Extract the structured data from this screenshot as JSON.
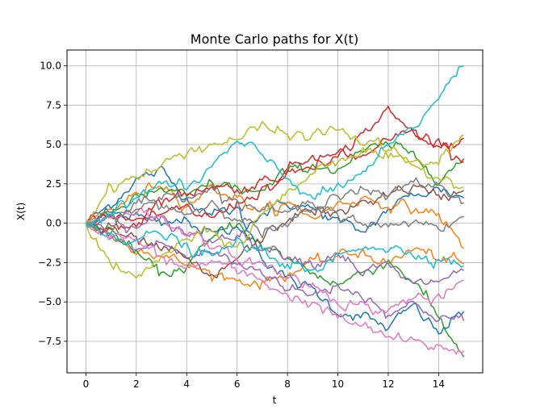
{
  "chart_data": {
    "type": "line",
    "title": "Monte Carlo paths for X(t)",
    "xlabel": "t",
    "ylabel": "X(t)",
    "xlim": [
      -0.75,
      15.75
    ],
    "ylim": [
      -9.5,
      11.0
    ],
    "xticks": [
      0,
      2,
      4,
      6,
      8,
      10,
      12,
      14
    ],
    "xtick_labels": [
      "0",
      "2",
      "4",
      "6",
      "8",
      "10",
      "12",
      "14"
    ],
    "yticks": [
      -7.5,
      -5.0,
      -2.5,
      0.0,
      2.5,
      5.0,
      7.5,
      10.0
    ],
    "ytick_labels": [
      "−7.5",
      "−5.0",
      "−2.5",
      "0.0",
      "2.5",
      "5.0",
      "7.5",
      "10.0"
    ],
    "grid": true,
    "legend": "none",
    "series": [
      {
        "color": "#1f77b4",
        "x": [
          0,
          1,
          2,
          3,
          4,
          5,
          6,
          7,
          8,
          9,
          10,
          11,
          12,
          13,
          14,
          15
        ],
        "y": [
          0,
          1.2,
          2.8,
          3.3,
          1.6,
          0.6,
          0.9,
          -2.1,
          -3.6,
          -4.2,
          -5.6,
          -5.9,
          -6.7,
          -5.2,
          -7.0,
          -5.6
        ]
      },
      {
        "color": "#1f77b4",
        "x": [
          0,
          1,
          2,
          3,
          4,
          5,
          6,
          7,
          8,
          9,
          10,
          11,
          12,
          13,
          14,
          15
        ],
        "y": [
          0,
          0.6,
          0.5,
          -0.2,
          0.2,
          -0.7,
          -0.4,
          0.6,
          1.3,
          0.9,
          0.1,
          -0.6,
          0.9,
          1.8,
          2.2,
          1.6
        ]
      },
      {
        "color": "#ff7f0e",
        "x": [
          0,
          1,
          2,
          3,
          4,
          5,
          6,
          7,
          8,
          9,
          10,
          11,
          12,
          13,
          14,
          15
        ],
        "y": [
          0,
          -0.8,
          -1.5,
          -2.1,
          -2.6,
          -3.2,
          -3.6,
          -3.8,
          -3.2,
          -2.6,
          -2.1,
          -1.8,
          -2.6,
          -1.6,
          -2.2,
          -2.6
        ]
      },
      {
        "color": "#ff7f0e",
        "x": [
          0,
          1,
          2,
          3,
          4,
          5,
          6,
          7,
          8,
          9,
          10,
          11,
          12,
          13,
          14,
          15
        ],
        "y": [
          0,
          0.9,
          1.8,
          2.6,
          1.2,
          2.3,
          1.6,
          0.7,
          1.2,
          0.4,
          1.2,
          1.6,
          1.2,
          0.9,
          0.6,
          -1.6
        ]
      },
      {
        "color": "#2ca02c",
        "x": [
          0,
          1,
          2,
          3,
          4,
          5,
          6,
          7,
          8,
          9,
          10,
          11,
          12,
          13,
          14,
          15
        ],
        "y": [
          0,
          -0.5,
          -1.9,
          -3.3,
          -2.7,
          -1.1,
          0.2,
          -1.6,
          -2.2,
          -3.1,
          -3.9,
          -3.1,
          -2.4,
          -3.6,
          -6.0,
          -8.5
        ]
      },
      {
        "color": "#2ca02c",
        "x": [
          0,
          1,
          2,
          3,
          4,
          5,
          6,
          7,
          8,
          9,
          10,
          11,
          12,
          13,
          14,
          15
        ],
        "y": [
          0,
          0.5,
          1.5,
          2.2,
          1.6,
          2.6,
          2.2,
          1.9,
          3.3,
          3.7,
          3.4,
          4.5,
          5.0,
          4.3,
          3.0,
          3.9
        ]
      },
      {
        "color": "#d62728",
        "x": [
          0,
          1,
          2,
          3,
          4,
          5,
          6,
          7,
          8,
          9,
          10,
          11,
          12,
          13,
          14,
          15
        ],
        "y": [
          0,
          0.6,
          0.3,
          1.5,
          1.8,
          2.5,
          2.1,
          2.6,
          3.4,
          4.3,
          4.1,
          5.8,
          7.1,
          5.7,
          5.2,
          4.1
        ]
      },
      {
        "color": "#d62728",
        "x": [
          0,
          1,
          2,
          3,
          4,
          5,
          6,
          7,
          8,
          9,
          10,
          11,
          12,
          13,
          14,
          15
        ],
        "y": [
          0,
          -0.4,
          -0.2,
          0.5,
          0.9,
          0.3,
          1.3,
          2.1,
          2.9,
          3.6,
          4.6,
          4.1,
          5.2,
          5.8,
          4.6,
          5.4
        ]
      },
      {
        "color": "#9467bd",
        "x": [
          0,
          1,
          2,
          3,
          4,
          5,
          6,
          7,
          8,
          9,
          10,
          11,
          12,
          13,
          14,
          15
        ],
        "y": [
          0,
          -0.9,
          -1.7,
          -1.2,
          -2.2,
          -1.8,
          -2.6,
          -3.0,
          -4.1,
          -4.6,
          -3.9,
          -4.6,
          -5.6,
          -5.2,
          -5.9,
          -6.2
        ]
      },
      {
        "color": "#9467bd",
        "x": [
          0,
          1,
          2,
          3,
          4,
          5,
          6,
          7,
          8,
          9,
          10,
          11,
          12,
          13,
          14,
          15
        ],
        "y": [
          0,
          0.3,
          -0.4,
          0.2,
          -0.6,
          -1.1,
          -0.5,
          -1.6,
          -1.9,
          -2.6,
          -1.8,
          -3.1,
          -2.7,
          -4.0,
          -3.6,
          -3.0
        ]
      },
      {
        "color": "#8c564b",
        "x": [
          0,
          1,
          2,
          3,
          4,
          5,
          6,
          7,
          8,
          9,
          10,
          11,
          12,
          13,
          14,
          15
        ],
        "y": [
          0,
          -0.4,
          -1.2,
          -1.6,
          -2.3,
          -3.6,
          -2.2,
          -1.0,
          0.3,
          0.9,
          0.5,
          1.3,
          1.9,
          2.3,
          1.6,
          2.1
        ]
      },
      {
        "color": "#e377c2",
        "x": [
          0,
          1,
          2,
          3,
          4,
          5,
          6,
          7,
          8,
          9,
          10,
          11,
          12,
          13,
          14,
          15
        ],
        "y": [
          0,
          -0.8,
          -1.1,
          -2.2,
          -2.9,
          -2.4,
          -3.1,
          -3.6,
          -4.6,
          -5.1,
          -6.0,
          -6.6,
          -7.2,
          -7.6,
          -7.9,
          -8.1
        ]
      },
      {
        "color": "#e377c2",
        "x": [
          0,
          1,
          2,
          3,
          4,
          5,
          6,
          7,
          8,
          9,
          10,
          11,
          12,
          13,
          14,
          15
        ],
        "y": [
          0,
          0.4,
          0.9,
          0.2,
          -0.4,
          -1.6,
          -2.2,
          -2.6,
          -3.4,
          -3.9,
          -4.9,
          -5.3,
          -5.6,
          -4.6,
          -5.0,
          -3.6
        ]
      },
      {
        "color": "#7f7f7f",
        "x": [
          0,
          1,
          2,
          3,
          4,
          5,
          6,
          7,
          8,
          9,
          10,
          11,
          12,
          13,
          14,
          15
        ],
        "y": [
          0,
          0.3,
          0.9,
          1.2,
          0.6,
          1.3,
          0.5,
          -0.6,
          -0.2,
          0.9,
          0.5,
          0.2,
          -0.4,
          0.3,
          -0.3,
          0.4
        ]
      },
      {
        "color": "#7f7f7f",
        "x": [
          0,
          1,
          2,
          3,
          4,
          5,
          6,
          7,
          8,
          9,
          10,
          11,
          12,
          13,
          14,
          15
        ],
        "y": [
          0,
          -0.2,
          1.3,
          1.6,
          1.9,
          2.2,
          1.3,
          0.9,
          0.6,
          1.3,
          1.9,
          2.1,
          1.6,
          2.6,
          2.4,
          1.3
        ]
      },
      {
        "color": "#bcbd22",
        "x": [
          0,
          1,
          2,
          3,
          4,
          5,
          6,
          7,
          8,
          9,
          10,
          11,
          12,
          13,
          14,
          15
        ],
        "y": [
          0,
          2.4,
          2.9,
          3.6,
          4.6,
          5.0,
          5.4,
          6.1,
          5.6,
          5.6,
          6.0,
          5.1,
          4.9,
          3.6,
          3.9,
          5.6
        ]
      },
      {
        "color": "#bcbd22",
        "x": [
          0,
          1,
          2,
          3,
          4,
          5,
          6,
          7,
          8,
          9,
          10,
          11,
          12,
          13,
          14,
          15
        ],
        "y": [
          0,
          -2.6,
          -3.6,
          -2.1,
          -1.1,
          -0.6,
          -1.6,
          0.6,
          1.9,
          3.3,
          4.1,
          4.6,
          4.1,
          3.6,
          3.0,
          2.3
        ]
      },
      {
        "color": "#17becf",
        "x": [
          0,
          1,
          2,
          3,
          4,
          5,
          6,
          7,
          8,
          9,
          10,
          11,
          12,
          13,
          14,
          15
        ],
        "y": [
          0,
          0.6,
          1.6,
          2.6,
          2.1,
          3.6,
          5.1,
          4.3,
          2.9,
          1.6,
          2.2,
          3.2,
          4.8,
          6.0,
          8.1,
          10.0
        ]
      },
      {
        "color": "#17becf",
        "x": [
          0,
          1,
          2,
          3,
          4,
          5,
          6,
          7,
          8,
          9,
          10,
          11,
          12,
          13,
          14,
          15
        ],
        "y": [
          0,
          -0.6,
          -1.1,
          -0.6,
          -1.6,
          -2.2,
          -1.2,
          -1.9,
          -2.5,
          -3.3,
          -2.1,
          -1.3,
          -1.6,
          -1.9,
          -2.2,
          -2.7
        ]
      }
    ]
  }
}
